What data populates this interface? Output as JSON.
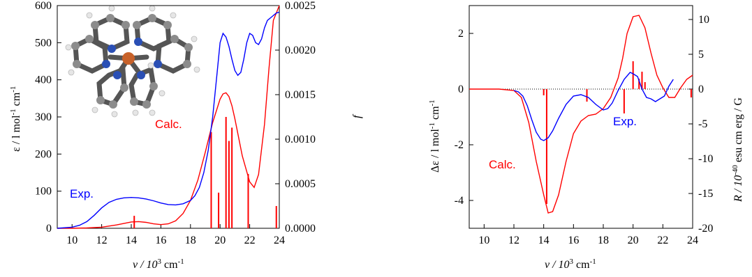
{
  "chart_data": [
    {
      "type": "line",
      "panel": "absorption",
      "title": "",
      "xlabel": {
        "main": "ν / 10",
        "sup": "3",
        "tail": " cm",
        "sup2": "-1"
      },
      "ylabel": {
        "main": "ε / l mol",
        "sup": "-1",
        "tail": " cm",
        "sup2": "-1"
      },
      "y2label": "f",
      "xlim": [
        9,
        24
      ],
      "ylim": [
        0,
        600
      ],
      "y2lim": [
        0,
        0.0025
      ],
      "x_ticks": [
        "10",
        "12",
        "14",
        "16",
        "18",
        "20",
        "22",
        "24"
      ],
      "y_ticks": [
        "0",
        "100",
        "200",
        "300",
        "400",
        "500",
        "600"
      ],
      "y2_ticks": [
        "0.0000",
        "0.0005",
        "0.0010",
        "0.0015",
        "0.0020",
        "0.0025"
      ],
      "annotations": {
        "exp": "Exp.",
        "calc": "Calc."
      },
      "colors": {
        "exp": "#0000ff",
        "calc": "#ff0000"
      },
      "series": [
        {
          "name": "Exp.",
          "axis": "left",
          "color": "#0000ff",
          "x": [
            9.0,
            10.0,
            10.5,
            11.0,
            11.5,
            12.0,
            12.5,
            13.0,
            13.5,
            14.0,
            14.5,
            15.0,
            15.5,
            16.0,
            16.5,
            17.0,
            17.5,
            18.0,
            18.3,
            18.6,
            18.9,
            19.2,
            19.5,
            19.8,
            20.0,
            20.2,
            20.4,
            20.6,
            20.8,
            21.0,
            21.2,
            21.4,
            21.6,
            21.8,
            22.0,
            22.2,
            22.4,
            22.6,
            22.8,
            23.0,
            23.2,
            23.5,
            23.8,
            24.0
          ],
          "y": [
            0,
            3,
            8,
            18,
            35,
            55,
            70,
            78,
            82,
            83,
            82,
            79,
            74,
            68,
            64,
            63,
            66,
            75,
            88,
            110,
            150,
            210,
            300,
            420,
            500,
            525,
            515,
            490,
            455,
            425,
            412,
            420,
            455,
            500,
            525,
            520,
            500,
            495,
            510,
            540,
            560,
            570,
            580,
            582
          ]
        },
        {
          "name": "Calc.",
          "axis": "left",
          "color": "#ff0000",
          "x": [
            9.0,
            10.0,
            11.0,
            12.0,
            13.0,
            13.5,
            14.0,
            14.5,
            15.0,
            15.5,
            16.0,
            16.5,
            17.0,
            17.5,
            18.0,
            18.5,
            19.0,
            19.5,
            20.0,
            20.2,
            20.4,
            20.6,
            20.8,
            21.0,
            21.5,
            22.0,
            22.3,
            22.6,
            23.0,
            23.3,
            23.6,
            24.0
          ],
          "y": [
            0,
            0,
            1,
            3,
            9,
            13,
            17,
            18,
            16,
            12,
            10,
            12,
            20,
            40,
            75,
            130,
            205,
            285,
            348,
            362,
            365,
            355,
            330,
            295,
            195,
            125,
            110,
            145,
            280,
            430,
            560,
            640
          ]
        }
      ],
      "sticks": {
        "axis": "right",
        "color": "#ff0000",
        "x": [
          14.2,
          19.4,
          19.9,
          20.4,
          20.6,
          20.8,
          21.9,
          23.8
        ],
        "f": [
          0.00014,
          0.00108,
          0.0004,
          0.00125,
          0.00098,
          0.00113,
          0.00061,
          0.00025
        ]
      }
    },
    {
      "type": "line",
      "panel": "cd",
      "title": "",
      "xlabel": {
        "main": "ν / 10",
        "sup": "3",
        "tail": " cm",
        "sup2": "-1"
      },
      "ylabel": {
        "main": "Δε / l mol",
        "sup": "-1",
        "tail": " cm",
        "sup2": "-1"
      },
      "y2label": {
        "main": "R / 10",
        "sup": "-40",
        "tail": " esu cm erg / G"
      },
      "xlim": [
        9,
        24
      ],
      "ylim": [
        -5,
        3
      ],
      "y2lim": [
        -20,
        12
      ],
      "x_ticks": [
        "10",
        "12",
        "14",
        "16",
        "18",
        "20",
        "22",
        "24"
      ],
      "y_ticks": [
        "-4",
        "-2",
        "0",
        "2"
      ],
      "y2_ticks": [
        "-20",
        "-15",
        "-10",
        "-5",
        "0",
        "5",
        "10"
      ],
      "annotations": {
        "exp": "Exp.",
        "calc": "Calc."
      },
      "colors": {
        "exp": "#0000ff",
        "calc": "#ff0000"
      },
      "series": [
        {
          "name": "Exp.",
          "axis": "left",
          "color": "#0000ff",
          "x": [
            12.0,
            12.3,
            12.6,
            12.9,
            13.2,
            13.5,
            13.8,
            14.0,
            14.3,
            14.6,
            15.0,
            15.5,
            16.0,
            16.5,
            17.0,
            17.5,
            18.0,
            18.3,
            18.6,
            19.0,
            19.4,
            19.8,
            20.0,
            20.3,
            20.6,
            20.9,
            21.2,
            21.5,
            21.8,
            22.1,
            22.4,
            22.7
          ],
          "y": [
            -0.05,
            -0.1,
            -0.25,
            -0.6,
            -1.1,
            -1.55,
            -1.8,
            -1.85,
            -1.75,
            -1.5,
            -1.05,
            -0.55,
            -0.25,
            -0.2,
            -0.3,
            -0.55,
            -0.75,
            -0.7,
            -0.5,
            -0.05,
            0.35,
            0.6,
            0.55,
            0.45,
            0.0,
            -0.3,
            -0.35,
            -0.45,
            -0.35,
            -0.25,
            0.1,
            0.35
          ]
        },
        {
          "name": "Calc.",
          "axis": "left",
          "color": "#ff0000",
          "x": [
            9.0,
            11.0,
            12.0,
            12.5,
            13.0,
            13.5,
            14.0,
            14.3,
            14.6,
            15.0,
            15.5,
            16.0,
            16.5,
            17.0,
            17.5,
            18.0,
            18.5,
            19.0,
            19.3,
            19.6,
            20.0,
            20.4,
            20.8,
            21.2,
            21.6,
            22.0,
            22.4,
            22.8,
            23.2,
            23.6,
            24.0
          ],
          "y": [
            0,
            0,
            -0.05,
            -0.3,
            -1.2,
            -2.6,
            -3.8,
            -4.45,
            -4.4,
            -3.8,
            -2.6,
            -1.6,
            -1.15,
            -0.95,
            -0.9,
            -0.7,
            -0.3,
            0.4,
            1.1,
            2.0,
            2.6,
            2.65,
            2.2,
            1.3,
            0.5,
            0.05,
            -0.3,
            -0.3,
            0.05,
            0.35,
            0.5
          ]
        }
      ],
      "sticks": {
        "axis": "right",
        "color": "#ff0000",
        "x": [
          14.0,
          14.2,
          16.9,
          19.4,
          20.0,
          20.4,
          20.6,
          20.8,
          23.9
        ],
        "R": [
          -0.9,
          -16.5,
          -1.8,
          -3.5,
          4.0,
          1.5,
          2.5,
          1.0,
          -1.2
        ]
      }
    }
  ]
}
